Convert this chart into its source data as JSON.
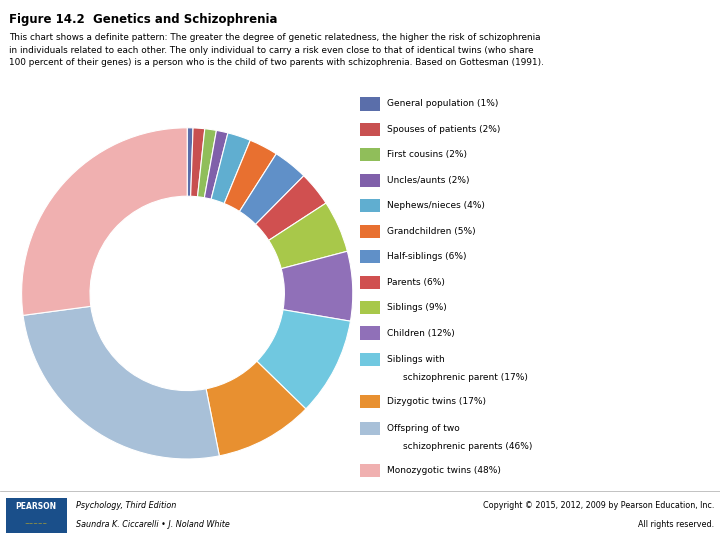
{
  "title": "Figure 14.2  Genetics and Schizophrenia",
  "subtitle": "This chart shows a definite pattern: The greater the degree of genetic relatedness, the higher the risk of schizophrenia\nin individuals related to each other. The only individual to carry a risk even close to that of identical twins (who share\n100 percent of their genes) is a person who is the child of two parents with schizophrenia. Based on Gottesman (1991).",
  "categories": [
    "General population (1%)",
    "Spouses of patients (2%)",
    "First cousins (2%)",
    "Uncles/aunts (2%)",
    "Nephews/nieces (4%)",
    "Grandchildren (5%)",
    "Half-siblings (6%)",
    "Parents (6%)",
    "Siblings (9%)",
    "Children (12%)",
    "Siblings with\nschizophrenic parent (17%)",
    "Dizygotic twins (17%)",
    "Offspring of two\nschizophrenic parents (46%)",
    "Monozygotic twins (48%)"
  ],
  "values": [
    1,
    2,
    2,
    2,
    4,
    5,
    6,
    6,
    9,
    12,
    17,
    17,
    46,
    48
  ],
  "colors": [
    "#5a6eaa",
    "#c85050",
    "#90be5a",
    "#8060aa",
    "#60aed0",
    "#e87030",
    "#6090c8",
    "#d05050",
    "#a8c84a",
    "#9070b8",
    "#70c8e0",
    "#e89030",
    "#a8c0d8",
    "#f0b0b0"
  ],
  "footer_left_line1": "Psychology, Third Edition",
  "footer_left_line2": "Saundra K. Ciccarelli • J. Noland White",
  "footer_right_line1": "Copyright © 2015, 2012, 2009 by Pearson Education, Inc.",
  "footer_right_line2": "All rights reserved.",
  "footer_bg": "#1a5276",
  "pearson_box_color": "#1a4f8a"
}
